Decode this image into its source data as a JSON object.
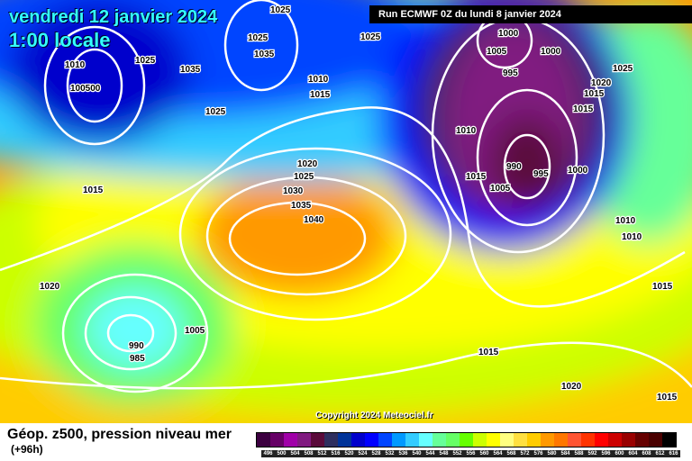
{
  "title": {
    "date": "vendredi 12 janvier 2024",
    "time": "1:00 locale"
  },
  "run_label": "Run ECMWF 0Z du lundi 8 janvier 2024",
  "copyright": "Copyright 2024 Meteociel.fr",
  "footer": {
    "title": "Géop. z500, pression niveau mer",
    "lead": "(+96h)"
  },
  "legend": {
    "values": [
      "496",
      "500",
      "504",
      "508",
      "512",
      "516",
      "520",
      "524",
      "528",
      "532",
      "536",
      "540",
      "544",
      "548",
      "552",
      "556",
      "560",
      "564",
      "568",
      "572",
      "576",
      "580",
      "584",
      "588",
      "592",
      "596",
      "600",
      "604",
      "608",
      "612",
      "616"
    ],
    "colors": [
      "#3c0040",
      "#660066",
      "#a000a8",
      "#801a80",
      "#5a0a3a",
      "#2e2e5e",
      "#003399",
      "#0000cc",
      "#0000ff",
      "#0044ff",
      "#0099ff",
      "#33ccff",
      "#66ffff",
      "#66ff99",
      "#66ff66",
      "#66ff00",
      "#ccff00",
      "#ffff00",
      "#ffff80",
      "#ffe040",
      "#ffcc00",
      "#ff9900",
      "#ff7700",
      "#ff5533",
      "#ff3300",
      "#ff0000",
      "#cc0000",
      "#990000",
      "#660000",
      "#4a0000",
      "#000000"
    ]
  },
  "isobar_labels": [
    "1025",
    "1035",
    "1025",
    "1025",
    "1035",
    "1025",
    "1010",
    "1010",
    "1015",
    "100500",
    "1025",
    "1020",
    "1025",
    "1030",
    "1035",
    "1040",
    "1015",
    "1020",
    "1000",
    "1005",
    "1010",
    "1015",
    "990",
    "995",
    "995",
    "1000",
    "1010",
    "990",
    "985",
    "1005",
    "1015",
    "1000",
    "1025",
    "1020",
    "1015",
    "1010",
    "1015",
    "1015",
    "1020",
    "1015",
    "1005"
  ]
}
